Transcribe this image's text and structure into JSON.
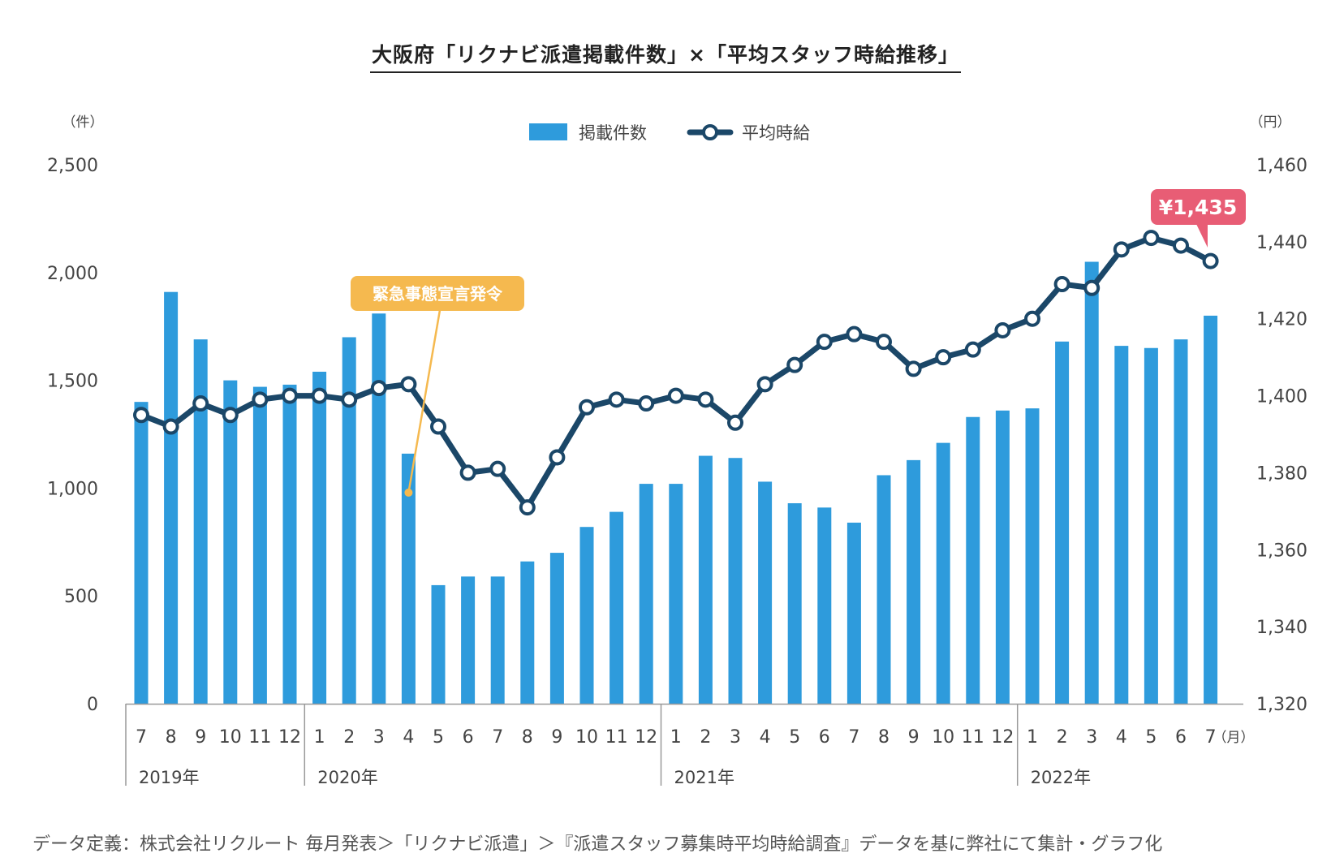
{
  "title": "大阪府「リクナビ派遣掲載件数」×「平均スタッフ時給推移」",
  "footnote": "データ定義：株式会社リクルート 毎月発表＞「リクナビ派遣」＞『派遣スタッフ募集時平均時給調査』データを基に弊社にて集計・グラフ化",
  "colors": {
    "bar": "#2e9bdc",
    "line": "#1b4768",
    "callout_event": "#f5b94f",
    "callout_value": "#e85d75",
    "axis": "#999999",
    "text": "#444444"
  },
  "chart_data": {
    "type": "bar+line",
    "legend": [
      "掲載件数",
      "平均時給"
    ],
    "legend_position": "top-center",
    "left_axis": {
      "unit": "（件）",
      "ylim": [
        0,
        2500
      ],
      "ticks": [
        "0",
        "500",
        "1,000",
        "1,500",
        "2,000",
        "2,500"
      ]
    },
    "right_axis": {
      "unit": "（円）",
      "ylim": [
        1320,
        1460
      ],
      "ticks": [
        "1,320",
        "1,340",
        "1,360",
        "1,380",
        "1,400",
        "1,420",
        "1,440",
        "1,460"
      ]
    },
    "x_unit": "（月）",
    "categories": [
      "7",
      "8",
      "9",
      "10",
      "11",
      "12",
      "1",
      "2",
      "3",
      "4",
      "5",
      "6",
      "7",
      "8",
      "9",
      "10",
      "11",
      "12",
      "1",
      "2",
      "3",
      "4",
      "5",
      "6",
      "7",
      "8",
      "9",
      "10",
      "11",
      "12",
      "1",
      "2",
      "3",
      "4",
      "5",
      "6",
      "7"
    ],
    "year_groups": [
      {
        "label": "2019年",
        "start": 0
      },
      {
        "label": "2020年",
        "start": 6
      },
      {
        "label": "2021年",
        "start": 18
      },
      {
        "label": "2022年",
        "start": 30
      }
    ],
    "series": [
      {
        "name": "掲載件数",
        "axis": "left",
        "type": "bar",
        "values": [
          1400,
          1910,
          1690,
          1500,
          1470,
          1480,
          1540,
          1700,
          1810,
          1160,
          550,
          590,
          590,
          660,
          700,
          820,
          890,
          1020,
          1020,
          1150,
          1140,
          1030,
          930,
          910,
          840,
          1060,
          1130,
          1210,
          1330,
          1360,
          1370,
          1680,
          2050,
          1660,
          1650,
          1690,
          1800
        ]
      },
      {
        "name": "平均時給",
        "axis": "right",
        "type": "line",
        "values": [
          1395,
          1392,
          1398,
          1395,
          1399,
          1400,
          1400,
          1399,
          1402,
          1403,
          1392,
          1380,
          1381,
          1371,
          1384,
          1397,
          1399,
          1398,
          1400,
          1399,
          1393,
          1403,
          1408,
          1414,
          1416,
          1414,
          1407,
          1410,
          1412,
          1417,
          1420,
          1429,
          1428,
          1438,
          1441,
          1439,
          1435
        ]
      }
    ],
    "annotations": [
      {
        "text": "緊急事態宣言発令",
        "index": 9
      },
      {
        "text": "¥1,435",
        "index": 36
      }
    ]
  }
}
